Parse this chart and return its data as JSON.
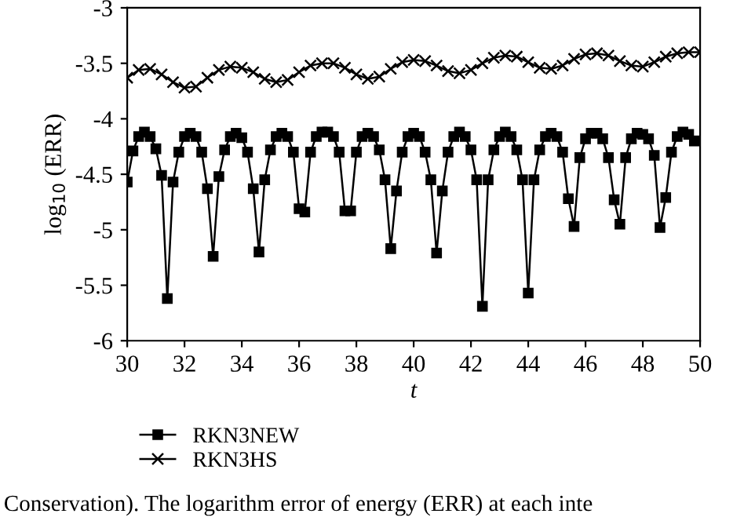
{
  "chart_data": {
    "type": "line",
    "xlabel": "t",
    "ylabel": "log$_{10}$ (ERR)",
    "xlim": [
      30,
      50
    ],
    "ylim": [
      -6,
      -3
    ],
    "xticks": [
      30,
      32,
      34,
      36,
      38,
      40,
      42,
      44,
      46,
      48,
      50
    ],
    "yticks": [
      -6,
      -5.5,
      -5,
      -4.5,
      -4,
      -3.5,
      -3
    ],
    "grid": false,
    "legend": "bottom",
    "line_style": "solid",
    "annotations": [
      "Conservation). The logarithm error of energy (ERR) at each inte"
    ],
    "series": [
      {
        "name": "RKN3NEW",
        "color": "#000000",
        "marker": "square",
        "x": [
          30.0,
          30.2,
          30.4,
          30.6,
          30.8,
          31.0,
          31.2,
          31.4,
          31.6,
          31.8,
          32.0,
          32.2,
          32.4,
          32.6,
          32.8,
          33.0,
          33.2,
          33.4,
          33.6,
          33.8,
          34.0,
          34.2,
          34.4,
          34.6,
          34.8,
          35.0,
          35.2,
          35.4,
          35.6,
          35.8,
          36.0,
          36.2,
          36.4,
          36.6,
          36.8,
          37.0,
          37.2,
          37.4,
          37.6,
          37.8,
          38.0,
          38.2,
          38.4,
          38.6,
          38.8,
          39.0,
          39.2,
          39.4,
          39.6,
          39.8,
          40.0,
          40.2,
          40.4,
          40.6,
          40.8,
          41.0,
          41.2,
          41.4,
          41.6,
          41.8,
          42.0,
          42.2,
          42.4,
          42.6,
          42.8,
          43.0,
          43.2,
          43.4,
          43.6,
          43.8,
          44.0,
          44.2,
          44.4,
          44.6,
          44.8,
          45.0,
          45.2,
          45.4,
          45.6,
          45.8,
          46.0,
          46.2,
          46.4,
          46.6,
          46.8,
          47.0,
          47.2,
          47.4,
          47.6,
          47.8,
          48.0,
          48.2,
          48.4,
          48.6,
          48.8,
          49.0,
          49.2,
          49.4,
          49.6,
          49.8
        ],
        "values": [
          -4.57,
          -4.29,
          -4.16,
          -4.12,
          -4.16,
          -4.27,
          -4.51,
          -5.62,
          -4.57,
          -4.3,
          -4.16,
          -4.13,
          -4.16,
          -4.3,
          -4.63,
          -5.24,
          -4.52,
          -4.28,
          -4.16,
          -4.13,
          -4.17,
          -4.3,
          -4.63,
          -5.2,
          -4.55,
          -4.28,
          -4.16,
          -4.13,
          -4.16,
          -4.3,
          -4.81,
          -4.84,
          -4.3,
          -4.16,
          -4.12,
          -4.12,
          -4.16,
          -4.3,
          -4.83,
          -4.83,
          -4.3,
          -4.16,
          -4.13,
          -4.16,
          -4.28,
          -4.55,
          -5.17,
          -4.65,
          -4.3,
          -4.16,
          -4.13,
          -4.16,
          -4.3,
          -4.55,
          -5.21,
          -4.65,
          -4.3,
          -4.16,
          -4.12,
          -4.16,
          -4.28,
          -4.55,
          -5.69,
          -4.55,
          -4.28,
          -4.16,
          -4.12,
          -4.16,
          -4.28,
          -4.55,
          -5.57,
          -4.55,
          -4.28,
          -4.16,
          -4.13,
          -4.16,
          -4.3,
          -4.72,
          -4.97,
          -4.35,
          -4.18,
          -4.13,
          -4.13,
          -4.18,
          -4.35,
          -4.73,
          -4.95,
          -4.35,
          -4.18,
          -4.13,
          -4.14,
          -4.18,
          -4.33,
          -4.98,
          -4.71,
          -4.3,
          -4.16,
          -4.12,
          -4.14,
          -4.2
        ]
      },
      {
        "name": "RKN3HS",
        "color": "#000000",
        "marker": "cross",
        "x": [
          30.0,
          30.4,
          30.8,
          31.2,
          31.6,
          32.0,
          32.4,
          32.8,
          33.2,
          33.6,
          34.0,
          34.4,
          34.8,
          35.2,
          35.6,
          36.0,
          36.4,
          36.8,
          37.2,
          37.6,
          38.0,
          38.4,
          38.8,
          39.2,
          39.6,
          40.0,
          40.4,
          40.8,
          41.2,
          41.6,
          42.0,
          42.4,
          42.8,
          43.2,
          43.6,
          44.0,
          44.4,
          44.8,
          45.2,
          45.6,
          46.0,
          46.4,
          46.8,
          47.2,
          47.6,
          48.0,
          48.4,
          48.8,
          49.2,
          49.6,
          50.0
        ],
        "values": [
          -3.63,
          -3.56,
          -3.55,
          -3.6,
          -3.67,
          -3.72,
          -3.71,
          -3.63,
          -3.56,
          -3.53,
          -3.54,
          -3.58,
          -3.64,
          -3.67,
          -3.65,
          -3.58,
          -3.52,
          -3.5,
          -3.5,
          -3.54,
          -3.6,
          -3.64,
          -3.62,
          -3.55,
          -3.49,
          -3.47,
          -3.48,
          -3.52,
          -3.57,
          -3.59,
          -3.56,
          -3.5,
          -3.45,
          -3.43,
          -3.44,
          -3.49,
          -3.54,
          -3.55,
          -3.52,
          -3.46,
          -3.42,
          -3.41,
          -3.43,
          -3.48,
          -3.52,
          -3.53,
          -3.49,
          -3.44,
          -3.41,
          -3.4,
          -3.4
        ]
      }
    ]
  }
}
